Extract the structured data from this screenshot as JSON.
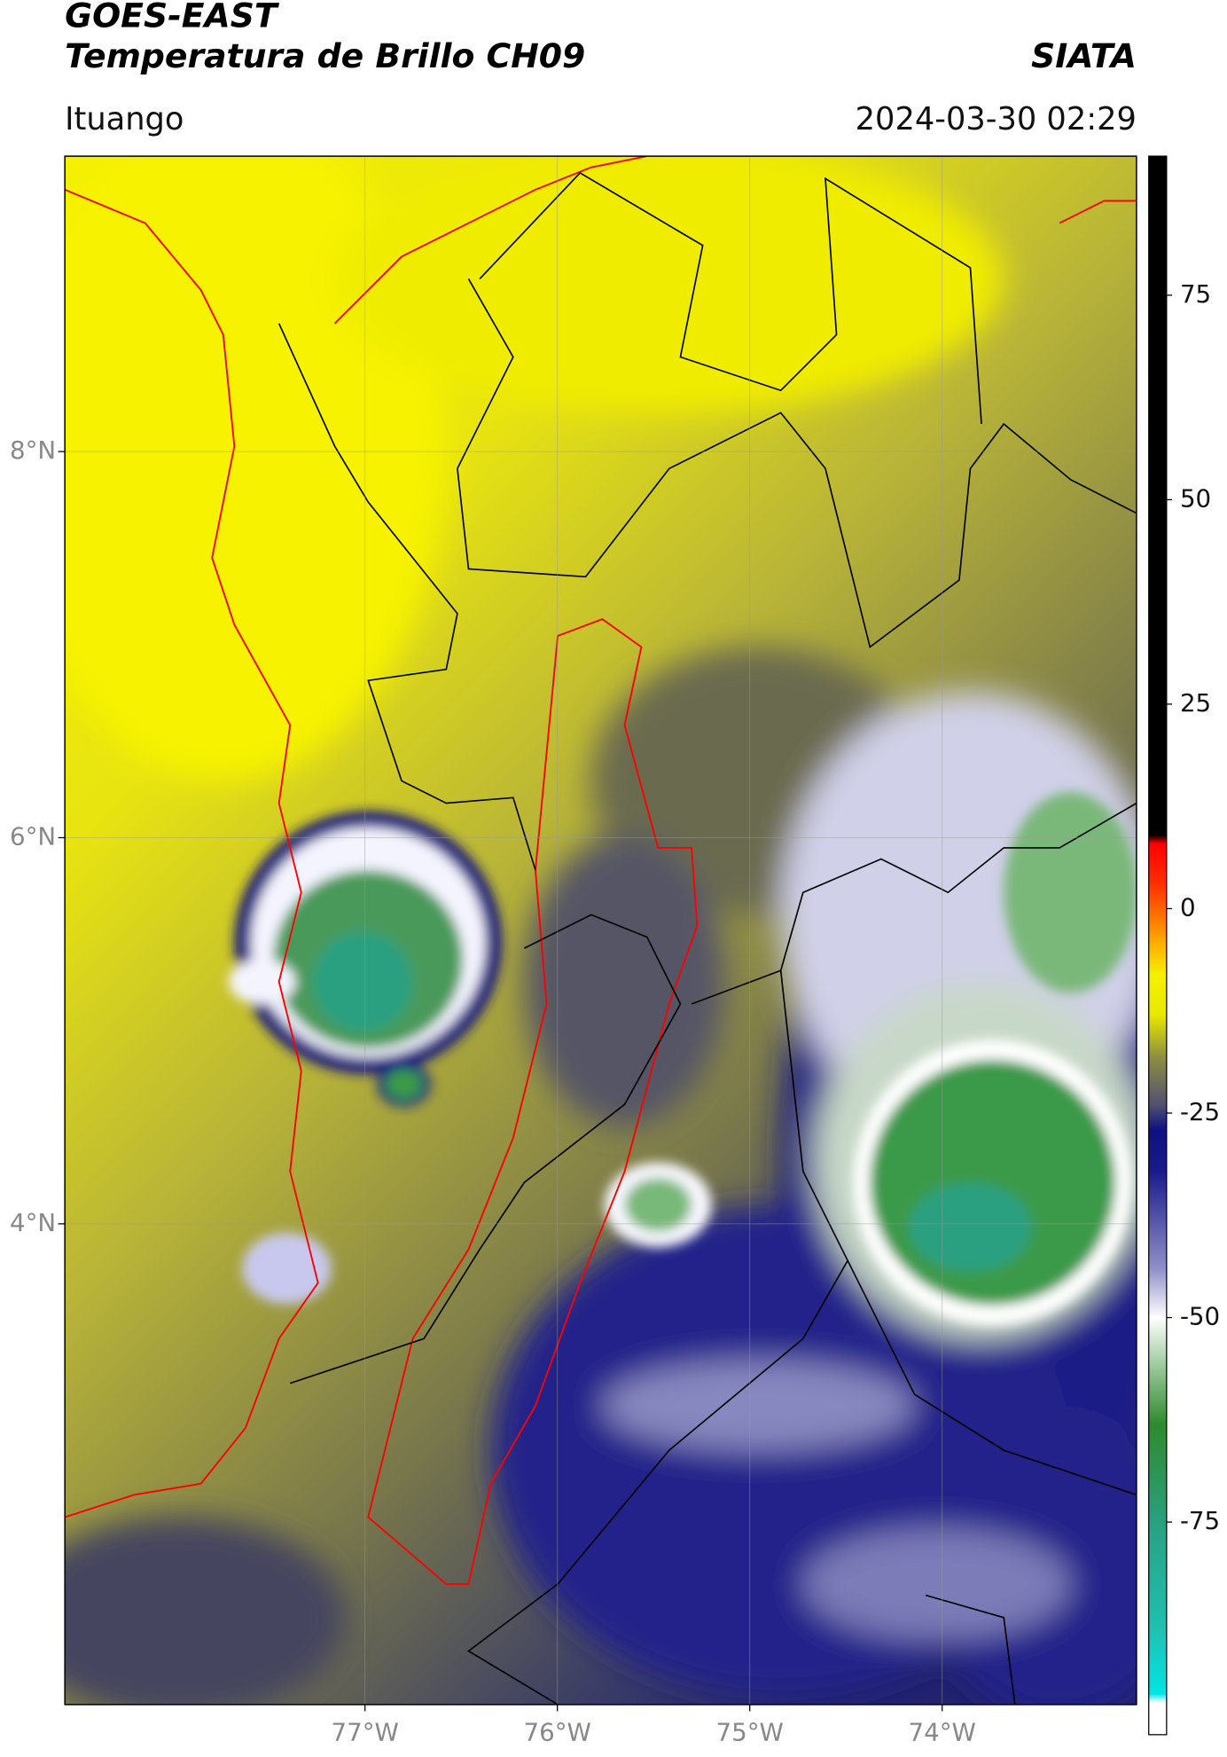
{
  "chart_data": {
    "type": "map",
    "title": "GOES-EAST",
    "subtitle": "Temperatura de Brillo CH09",
    "source": "SIATA",
    "location": "Ituango",
    "timestamp": "2024-03-30 02:29",
    "xlim": [
      -78.56,
      -72.99
    ],
    "ylim": [
      1.51,
      9.53
    ],
    "xticks": [
      {
        "value": -77,
        "label": "77°W"
      },
      {
        "value": -76,
        "label": "76°W"
      },
      {
        "value": -75,
        "label": "75°W"
      },
      {
        "value": -74,
        "label": "74°W"
      }
    ],
    "yticks": [
      {
        "value": 8,
        "label": "8°N"
      },
      {
        "value": 6,
        "label": "6°N"
      },
      {
        "value": 4,
        "label": "4°N"
      }
    ],
    "grid": true,
    "colorbar": {
      "lim": [
        -101,
        92
      ],
      "ticks": [
        75,
        50,
        25,
        0,
        -25,
        -50,
        -75
      ],
      "stops": [
        {
          "value": -101,
          "color": "#ffffff"
        },
        {
          "value": -97,
          "color": "#ffffff"
        },
        {
          "value": -96,
          "color": "#00e5e5"
        },
        {
          "value": -88,
          "color": "#20c0b0"
        },
        {
          "value": -75,
          "color": "#2aa080"
        },
        {
          "value": -63,
          "color": "#2e8a2e"
        },
        {
          "value": -56,
          "color": "#9ac89a"
        },
        {
          "value": -50,
          "color": "#ffffff"
        },
        {
          "value": -44,
          "color": "#9090c8"
        },
        {
          "value": -32,
          "color": "#1a1a8a"
        },
        {
          "value": -27,
          "color": "#101080"
        },
        {
          "value": -24,
          "color": "#505070"
        },
        {
          "value": -18,
          "color": "#909040"
        },
        {
          "value": -13,
          "color": "#e8e800"
        },
        {
          "value": -8,
          "color": "#f5f000"
        },
        {
          "value": -3,
          "color": "#ff9900"
        },
        {
          "value": 3,
          "color": "#ff3000"
        },
        {
          "value": 8,
          "color": "#ff0000"
        },
        {
          "value": 9,
          "color": "#000000"
        },
        {
          "value": 92,
          "color": "#000000"
        }
      ]
    }
  }
}
